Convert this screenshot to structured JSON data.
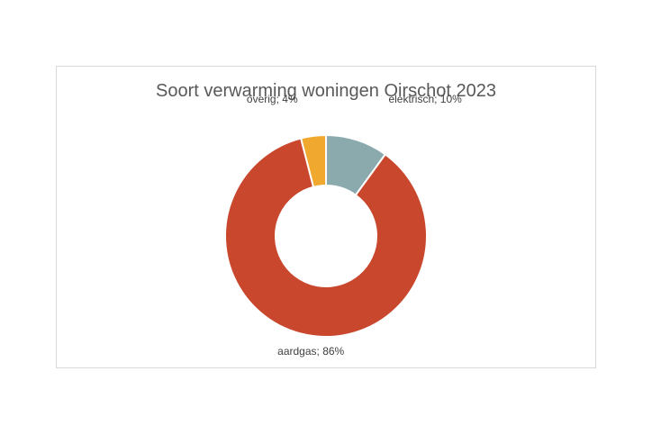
{
  "chart_data": {
    "type": "pie",
    "variant": "doughnut",
    "title": "Soort verwarming woningen Oirschot 2023",
    "slices": [
      {
        "name": "elektrisch",
        "value": 10,
        "label": "elektrisch; 10%",
        "color": "#8AAAAE"
      },
      {
        "name": "aardgas",
        "value": 86,
        "label": "aardgas; 86%",
        "color": "#C8472D"
      },
      {
        "name": "overig",
        "value": 4,
        "label": "overig; 4%",
        "color": "#F0A82E"
      }
    ],
    "legend": "none"
  }
}
